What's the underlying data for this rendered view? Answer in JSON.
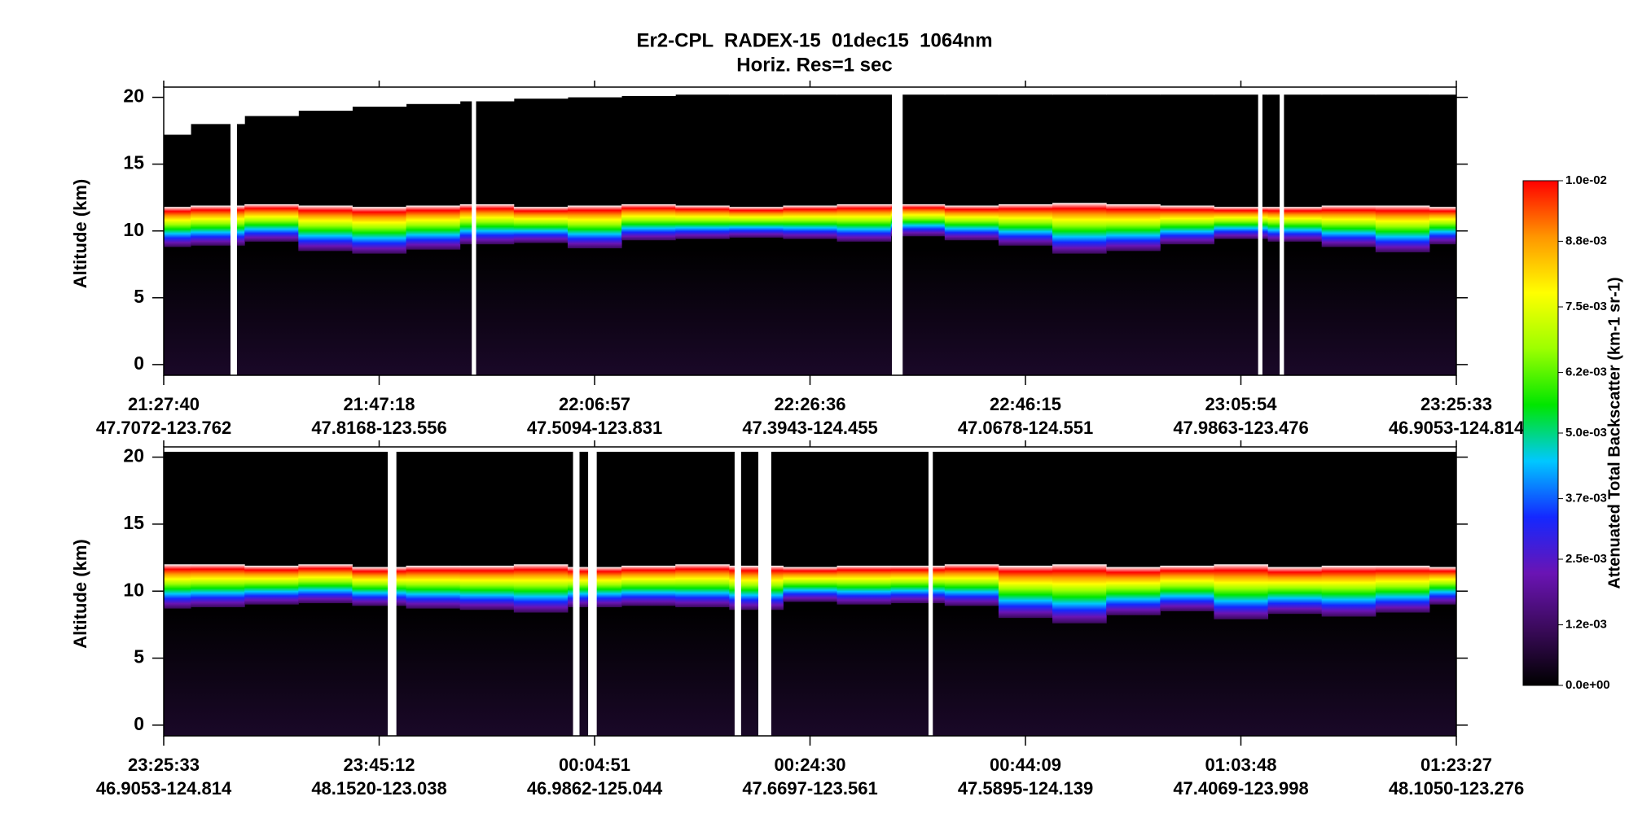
{
  "header": {
    "title": "Er2-CPL  RADEX-15  01dec15  1064nm",
    "subtitle": "Horiz. Res=1 sec"
  },
  "chart_data": [
    {
      "type": "curtain",
      "y_label": "Altitude (km)",
      "xlim": [
        0,
        6
      ],
      "ylim": [
        -0.8,
        20.4
      ],
      "yticks": [
        0,
        5,
        10,
        15,
        20
      ],
      "xticks": [
        {
          "value": 0,
          "label": "21:27:40",
          "sublabel": "47.7072-123.762"
        },
        {
          "value": 1,
          "label": "21:47:18",
          "sublabel": "47.8168-123.556"
        },
        {
          "value": 2,
          "label": "22:06:57",
          "sublabel": "47.5094-123.831"
        },
        {
          "value": 3,
          "label": "22:26:36",
          "sublabel": "47.3943-124.455"
        },
        {
          "value": 4,
          "label": "22:46:15",
          "sublabel": "47.0678-124.551"
        },
        {
          "value": 5,
          "label": "23:05:54",
          "sublabel": "47.9863-123.476"
        },
        {
          "value": 6,
          "label": "23:25:33",
          "sublabel": "46.9053-124.814"
        }
      ],
      "x": [
        0,
        0.25,
        0.5,
        0.75,
        1,
        1.25,
        1.5,
        1.75,
        2,
        2.25,
        2.5,
        2.75,
        3,
        3.25,
        3.5,
        3.75,
        4,
        4.25,
        4.5,
        4.75,
        5,
        5.25,
        5.5,
        5.75,
        6
      ],
      "cloud_top": [
        11.8,
        11.9,
        12,
        11.9,
        11.8,
        11.9,
        12,
        11.8,
        11.9,
        12,
        11.9,
        11.8,
        11.9,
        12,
        12,
        11.9,
        12,
        12.1,
        12,
        11.9,
        11.8,
        11.8,
        11.9,
        11.9,
        11.8
      ],
      "cloud_base": [
        8.8,
        8.9,
        9.2,
        8.5,
        8.3,
        8.6,
        9.0,
        9.1,
        8.7,
        9.3,
        9.4,
        9.5,
        9.4,
        9.2,
        9.6,
        9.3,
        8.9,
        8.3,
        8.5,
        9.0,
        9.4,
        9.2,
        8.8,
        8.4,
        9.0
      ],
      "data_top": [
        17.2,
        18.0,
        18.6,
        19.0,
        19.3,
        19.5,
        19.7,
        19.9,
        20.0,
        20.1,
        20.2,
        20.2,
        20.2,
        20.2,
        20.2,
        20.2,
        20.2,
        20.2,
        20.2,
        20.2,
        20.2,
        20.2,
        20.2,
        20.2,
        20.2
      ],
      "gaps": [
        [
          0.31,
          0.34
        ],
        [
          1.43,
          1.45
        ],
        [
          3.38,
          3.43
        ],
        [
          5.08,
          5.1
        ],
        [
          5.18,
          5.2
        ]
      ]
    },
    {
      "type": "curtain",
      "y_label": "Altitude (km)",
      "xlim": [
        0,
        6
      ],
      "ylim": [
        -0.8,
        20.4
      ],
      "yticks": [
        0,
        5,
        10,
        15,
        20
      ],
      "xticks": [
        {
          "value": 0,
          "label": "23:25:33",
          "sublabel": "46.9053-124.814"
        },
        {
          "value": 1,
          "label": "23:45:12",
          "sublabel": "48.1520-123.038"
        },
        {
          "value": 2,
          "label": "00:04:51",
          "sublabel": "46.9862-125.044"
        },
        {
          "value": 3,
          "label": "00:24:30",
          "sublabel": "47.6697-123.561"
        },
        {
          "value": 4,
          "label": "00:44:09",
          "sublabel": "47.5895-124.139"
        },
        {
          "value": 5,
          "label": "01:03:48",
          "sublabel": "47.4069-123.998"
        },
        {
          "value": 6,
          "label": "01:23:27",
          "sublabel": "48.1050-123.276"
        }
      ],
      "x": [
        0,
        0.25,
        0.5,
        0.75,
        1,
        1.25,
        1.5,
        1.75,
        2,
        2.25,
        2.5,
        2.75,
        3,
        3.25,
        3.5,
        3.75,
        4,
        4.25,
        4.5,
        4.75,
        5,
        5.25,
        5.5,
        5.75,
        6
      ],
      "cloud_top": [
        12,
        12,
        11.9,
        12,
        11.8,
        11.9,
        11.9,
        12,
        11.8,
        11.9,
        12,
        11.9,
        11.8,
        11.9,
        11.9,
        12,
        11.9,
        12,
        11.8,
        11.9,
        12,
        11.8,
        11.9,
        11.9,
        11.8
      ],
      "cloud_base": [
        8.7,
        8.8,
        9.0,
        9.1,
        8.9,
        8.7,
        8.6,
        8.4,
        8.8,
        8.9,
        8.8,
        8.6,
        9.2,
        9.0,
        9.1,
        8.9,
        8.0,
        7.6,
        8.2,
        8.5,
        7.9,
        8.3,
        8.1,
        8.4,
        9.0
      ],
      "gaps": [
        [
          1.04,
          1.08
        ],
        [
          1.9,
          1.93
        ],
        [
          1.97,
          2.01
        ],
        [
          2.65,
          2.68
        ],
        [
          2.76,
          2.82
        ],
        [
          3.55,
          3.57
        ]
      ]
    }
  ],
  "colorbar": {
    "label": "Attenuated Total Backscatter (km-1 sr-1)",
    "ylim": [
      0,
      0.01
    ],
    "colors": [
      "#000000",
      "#3a0a5a",
      "#6a14b4",
      "#1428ff",
      "#00c8ff",
      "#00e600",
      "#9cff00",
      "#ffff00",
      "#ff9600",
      "#ff0000"
    ],
    "saturation_color": "#ffffff",
    "yticks": [
      {
        "value": 0,
        "label": "0.0e+00"
      },
      {
        "value": 0.0012,
        "label": "1.2e-03"
      },
      {
        "value": 0.0025,
        "label": "2.5e-03"
      },
      {
        "value": 0.0037,
        "label": "3.7e-03"
      },
      {
        "value": 0.005,
        "label": "5.0e-03"
      },
      {
        "value": 0.0062,
        "label": "6.2e-03"
      },
      {
        "value": 0.0075,
        "label": "7.5e-03"
      },
      {
        "value": 0.0088,
        "label": "8.8e-03"
      },
      {
        "value": 0.01,
        "label": "1.0e-02"
      }
    ]
  }
}
